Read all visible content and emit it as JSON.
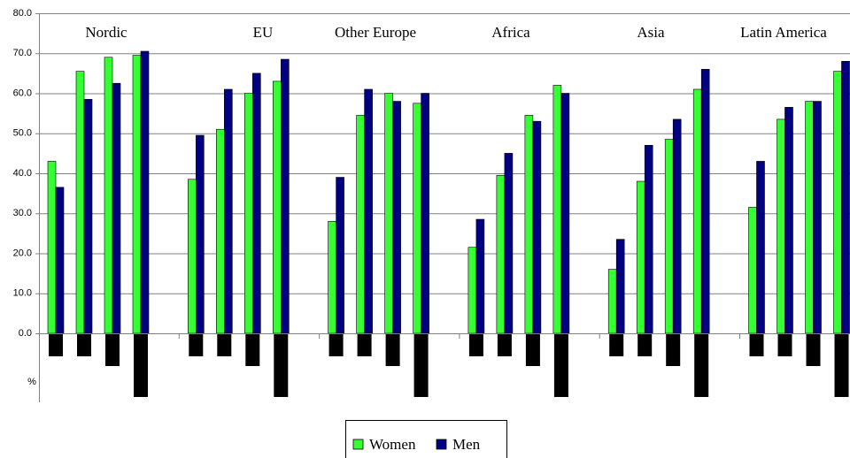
{
  "chart_data": {
    "type": "bar",
    "groups": [
      "Nordic",
      "EU",
      "Other Europe",
      "Africa",
      "Asia",
      "Latin America"
    ],
    "series": [
      {
        "name": "Women",
        "color": "#33ff33",
        "values": [
          [
            43,
            65.5,
            69,
            69.5
          ],
          [
            38.5,
            51,
            60,
            63
          ],
          [
            28,
            54.5,
            60,
            57.5
          ],
          [
            21.5,
            39.5,
            54.5,
            62
          ],
          [
            16,
            38,
            48.5,
            61
          ],
          [
            31.5,
            53.5,
            58,
            65.5
          ]
        ]
      },
      {
        "name": "Men",
        "color": "#000080",
        "values": [
          [
            36.5,
            58.5,
            62.5,
            70.5
          ],
          [
            49.5,
            61,
            65,
            68.5
          ],
          [
            39,
            61,
            58,
            60
          ],
          [
            28.5,
            45,
            53,
            60
          ],
          [
            23.5,
            47,
            53.5,
            66
          ],
          [
            43,
            56.5,
            58,
            68
          ]
        ]
      }
    ],
    "ylabel": "%",
    "ylim": [
      0,
      80
    ],
    "yticks": [
      {
        "value": 0,
        "label": "0.0"
      },
      {
        "value": 10,
        "label": "10.0"
      },
      {
        "value": 20,
        "label": "20.0"
      },
      {
        "value": 30,
        "label": "30.0"
      },
      {
        "value": 40,
        "label": "40.0"
      },
      {
        "value": 50,
        "label": "50.0"
      },
      {
        "value": 60,
        "label": "60.0"
      },
      {
        "value": 70,
        "label": "70.0"
      },
      {
        "value": 80,
        "label": "80.0"
      }
    ],
    "grid": true
  }
}
